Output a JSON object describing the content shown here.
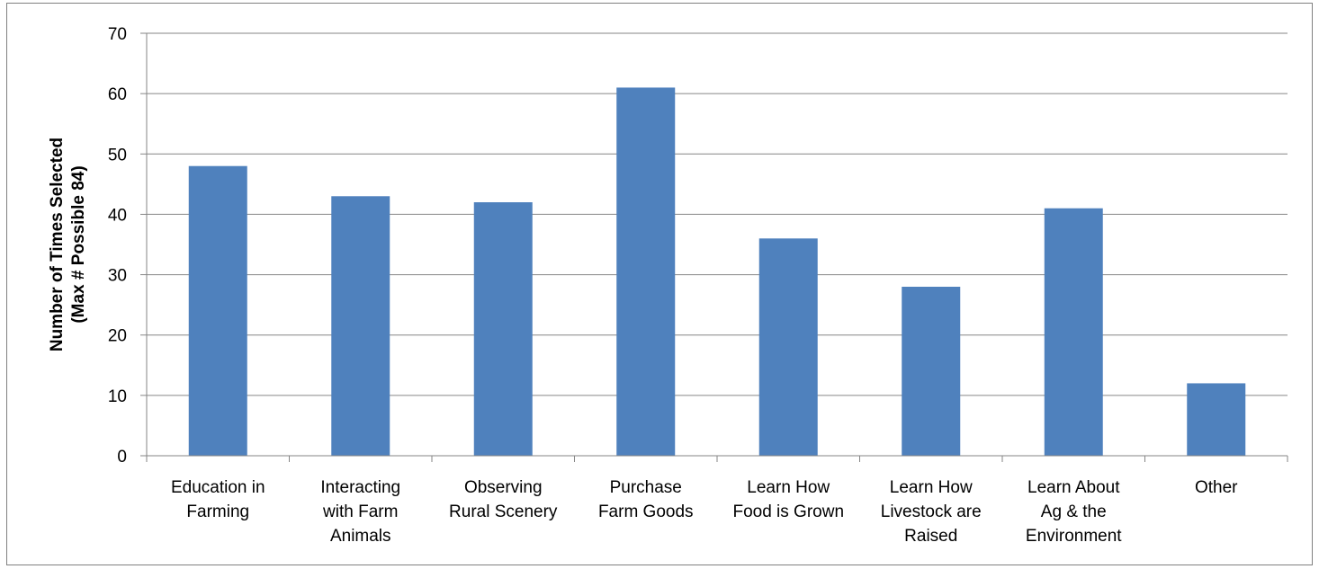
{
  "chart_data": {
    "type": "bar",
    "title": "",
    "xlabel": "",
    "ylabel": [
      "Number of Times Selected",
      "(Max # Possible 84)"
    ],
    "ylim": [
      0,
      70
    ],
    "yticks": [
      0,
      10,
      20,
      30,
      40,
      50,
      60,
      70
    ],
    "grid": true,
    "legend": "none",
    "bar_color": "#4f81bd",
    "categories": [
      [
        "Education in",
        "Farming"
      ],
      [
        "Interacting",
        "with Farm",
        "Animals"
      ],
      [
        "Observing",
        "Rural Scenery"
      ],
      [
        "Purchase",
        "Farm Goods"
      ],
      [
        "Learn How",
        "Food is Grown"
      ],
      [
        "Learn How",
        "Livestock are",
        "Raised"
      ],
      [
        "Learn About",
        "Ag & the",
        "Environment"
      ],
      [
        "Other"
      ]
    ],
    "values": [
      48,
      43,
      42,
      61,
      36,
      28,
      41,
      12
    ]
  }
}
